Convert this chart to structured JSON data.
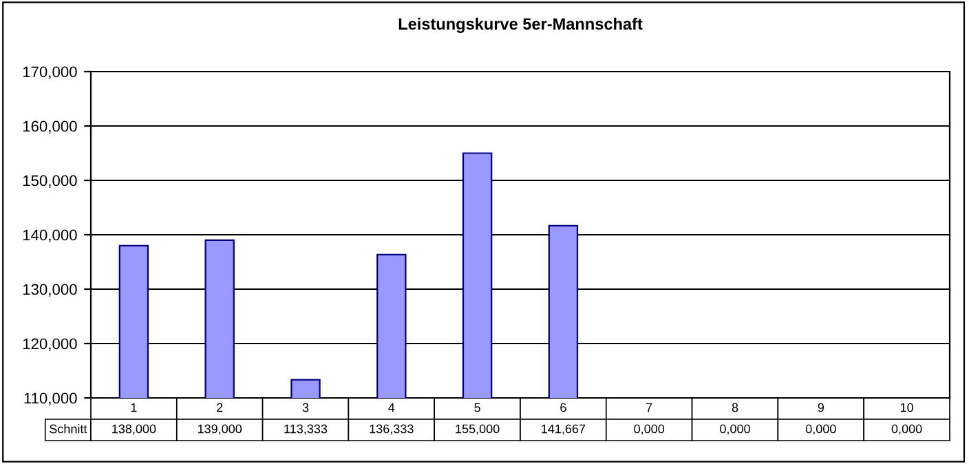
{
  "chart_data": {
    "type": "bar",
    "title": "Leistungskurve 5er-Mannschaft",
    "categories": [
      "1",
      "2",
      "3",
      "4",
      "5",
      "6",
      "7",
      "8",
      "9",
      "10"
    ],
    "series": [
      {
        "name": "Schnitt",
        "color": "#9999ff",
        "values": [
          138,
          139,
          113.333,
          136.333,
          155,
          141.667,
          null,
          null,
          null,
          null
        ],
        "value_labels": [
          "138,000",
          "139,000",
          "113,333",
          "136,333",
          "155,000",
          "141,667",
          "0,000",
          "0,000",
          "0,000",
          "0,000"
        ]
      }
    ],
    "ylim": [
      110,
      170
    ],
    "yticks": [
      {
        "value": 110,
        "label": "110,000"
      },
      {
        "value": 120,
        "label": "120,000"
      },
      {
        "value": 130,
        "label": "130,000"
      },
      {
        "value": 140,
        "label": "140,000"
      },
      {
        "value": 150,
        "label": "150,000"
      },
      {
        "value": 160,
        "label": "160,000"
      },
      {
        "value": 170,
        "label": "170,000"
      }
    ],
    "grid": "y",
    "legend": false
  }
}
